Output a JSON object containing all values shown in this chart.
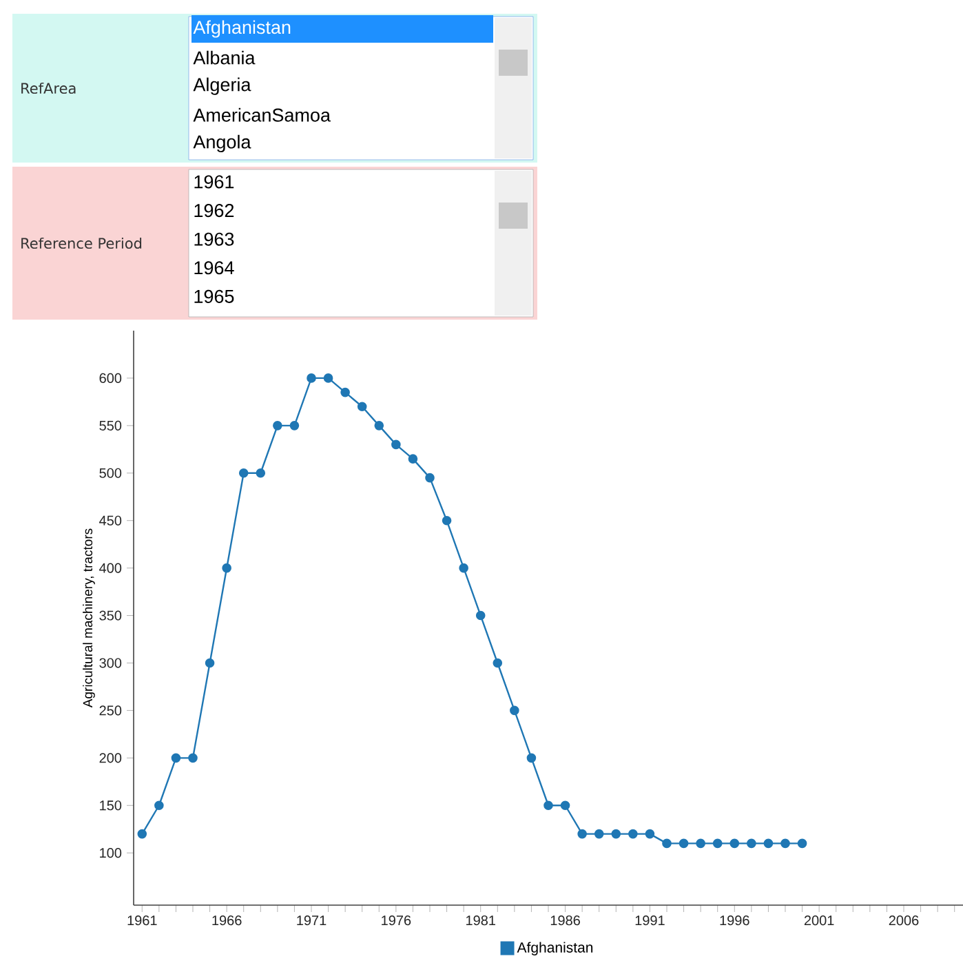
{
  "chart_data": {
    "type": "line",
    "ylabel": "Agricultural machinery, tractors",
    "annotations": [
      "RefArea",
      "Afghanistan",
      "Albania",
      "Algeria",
      "AmericanSamoa",
      "Angola",
      "Reference Period",
      "1961",
      "1962",
      "1963",
      "1964",
      "1965"
    ],
    "x": [
      1961,
      1962,
      1963,
      1964,
      1965,
      1966,
      1967,
      1968,
      1969,
      1970,
      1971,
      1972,
      1973,
      1974,
      1975,
      1976,
      1977,
      1978,
      1979,
      1980,
      1981,
      1982,
      1983,
      1984,
      1985,
      1986,
      1987,
      1988,
      1989,
      1990,
      1991,
      1992,
      1993,
      1994,
      1995,
      1996,
      1997,
      1998,
      1999,
      2000
    ],
    "series": [
      {
        "name": "Afghanistan",
        "color": "#1f77b4",
        "values": [
          120,
          150,
          200,
          200,
          300,
          400,
          500,
          500,
          550,
          550,
          600,
          600,
          585,
          570,
          550,
          530,
          515,
          495,
          450,
          400,
          350,
          300,
          250,
          200,
          150,
          150,
          120,
          120,
          120,
          120,
          120,
          110,
          110,
          110,
          110,
          110,
          110,
          110,
          110,
          110
        ]
      }
    ],
    "xlim": [
      1960.5,
      2009.5
    ],
    "ylim": [
      45,
      650
    ],
    "xticks": [
      {
        "value": 1961,
        "label": "1961"
      },
      {
        "value": 1962,
        "label": null
      },
      {
        "value": 1963,
        "label": null
      },
      {
        "value": 1964,
        "label": null
      },
      {
        "value": 1965,
        "label": null
      },
      {
        "value": 1966,
        "label": "1966"
      },
      {
        "value": 1967,
        "label": null
      },
      {
        "value": 1968,
        "label": null
      },
      {
        "value": 1969,
        "label": null
      },
      {
        "value": 1970,
        "label": null
      },
      {
        "value": 1971,
        "label": "1971"
      },
      {
        "value": 1972,
        "label": null
      },
      {
        "value": 1973,
        "label": null
      },
      {
        "value": 1974,
        "label": null
      },
      {
        "value": 1975,
        "label": null
      },
      {
        "value": 1976,
        "label": "1976"
      },
      {
        "value": 1977,
        "label": null
      },
      {
        "value": 1978,
        "label": null
      },
      {
        "value": 1979,
        "label": null
      },
      {
        "value": 1980,
        "label": null
      },
      {
        "value": 1981,
        "label": "1981"
      },
      {
        "value": 1982,
        "label": null
      },
      {
        "value": 1983,
        "label": null
      },
      {
        "value": 1984,
        "label": null
      },
      {
        "value": 1985,
        "label": null
      },
      {
        "value": 1986,
        "label": "1986"
      },
      {
        "value": 1987,
        "label": null
      },
      {
        "value": 1988,
        "label": null
      },
      {
        "value": 1989,
        "label": null
      },
      {
        "value": 1990,
        "label": null
      },
      {
        "value": 1991,
        "label": "1991"
      },
      {
        "value": 1992,
        "label": null
      },
      {
        "value": 1993,
        "label": null
      },
      {
        "value": 1994,
        "label": null
      },
      {
        "value": 1995,
        "label": null
      },
      {
        "value": 1996,
        "label": "1996"
      },
      {
        "value": 1997,
        "label": null
      },
      {
        "value": 1998,
        "label": null
      },
      {
        "value": 1999,
        "label": null
      },
      {
        "value": 2000,
        "label": null
      },
      {
        "value": 2001,
        "label": "2001"
      },
      {
        "value": 2002,
        "label": null
      },
      {
        "value": 2003,
        "label": null
      },
      {
        "value": 2004,
        "label": null
      },
      {
        "value": 2005,
        "label": null
      },
      {
        "value": 2006,
        "label": "2006"
      },
      {
        "value": 2007,
        "label": null
      },
      {
        "value": 2008,
        "label": null
      },
      {
        "value": 2009,
        "label": null
      }
    ],
    "yticks": [
      100,
      150,
      200,
      250,
      300,
      350,
      400,
      450,
      500,
      550,
      600
    ],
    "legend": "bottom",
    "marker": "circle",
    "line_style": "solid"
  }
}
